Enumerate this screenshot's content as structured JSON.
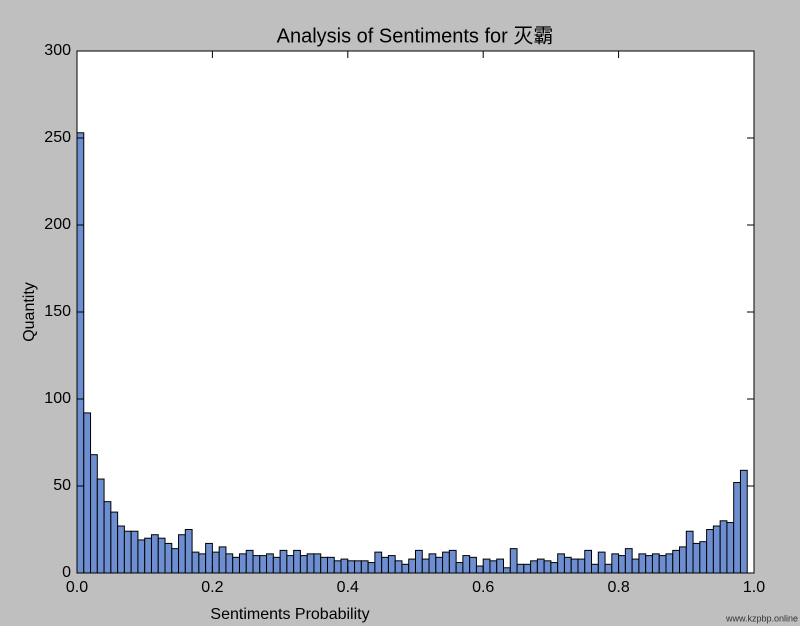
{
  "chart_data": {
    "type": "histogram",
    "title": "Analysis of Sentiments for 灭霸",
    "x_label": "Sentiments Probability",
    "y_label": "Quantity",
    "bins": [
      0,
      0.01,
      0.02,
      0.03,
      0.04,
      0.05,
      0.06,
      0.07,
      0.08,
      0.09,
      0.1,
      0.11,
      0.12,
      0.13,
      0.14,
      0.15,
      0.16,
      0.17,
      0.18,
      0.19,
      0.2,
      0.21,
      0.22,
      0.23,
      0.24,
      0.25,
      0.26,
      0.27,
      0.28,
      0.29,
      0.3,
      0.31,
      0.32,
      0.33,
      0.34,
      0.35,
      0.36,
      0.37,
      0.38,
      0.39,
      0.4,
      0.41,
      0.42,
      0.43,
      0.44,
      0.45,
      0.46,
      0.47,
      0.48,
      0.49,
      0.5,
      0.51,
      0.52,
      0.53,
      0.54,
      0.55,
      0.56,
      0.57,
      0.58,
      0.59,
      0.6,
      0.61,
      0.62,
      0.63,
      0.64,
      0.65,
      0.66,
      0.67,
      0.68,
      0.69,
      0.7,
      0.71,
      0.72,
      0.73,
      0.74,
      0.75,
      0.76,
      0.77,
      0.78,
      0.79,
      0.8,
      0.81,
      0.82,
      0.83,
      0.84,
      0.85,
      0.86,
      0.87,
      0.88,
      0.89,
      0.9,
      0.91,
      0.92,
      0.93,
      0.94,
      0.95,
      0.96,
      0.97,
      0.98,
      0.99
    ],
    "values": [
      253,
      92,
      68,
      54,
      41,
      35,
      27,
      24,
      24,
      19,
      20,
      22,
      20,
      17,
      14,
      22,
      25,
      12,
      11,
      17,
      12,
      15,
      11,
      9,
      11,
      13,
      10,
      10,
      11,
      9,
      13,
      10,
      13,
      10,
      11,
      11,
      9,
      9,
      7,
      8,
      7,
      7,
      7,
      6,
      12,
      9,
      10,
      7,
      5,
      8,
      13,
      8,
      11,
      9,
      12,
      13,
      6,
      10,
      9,
      4,
      8,
      7,
      8,
      3,
      14,
      5,
      5,
      7,
      8,
      7,
      6,
      11,
      9,
      8,
      8,
      13,
      5,
      12,
      5,
      11,
      10,
      14,
      8,
      11,
      10,
      11,
      10,
      11,
      13,
      15,
      24,
      17,
      18,
      25,
      27,
      30,
      29,
      52,
      59
    ],
    "color": "#6d8fd1",
    "xlim": [
      0,
      1
    ],
    "xticks": [
      {
        "value": 0,
        "label": "0.0"
      },
      0.2,
      0.4,
      0.6,
      0.8,
      {
        "value": 1,
        "label": "1.0"
      }
    ],
    "ylim": [
      0,
      300
    ],
    "yticks": [
      0,
      50,
      100,
      150,
      200,
      250,
      300
    ],
    "watermark": "www.kzpbp.online"
  }
}
